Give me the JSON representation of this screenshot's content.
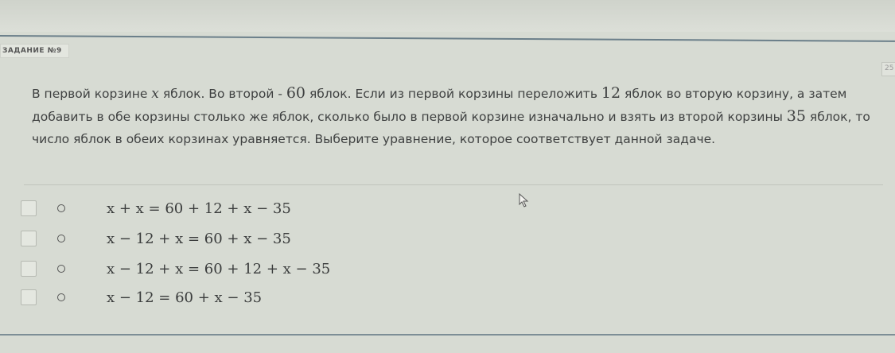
{
  "task": {
    "label": "ЗАДАНИЕ №9",
    "counter": "25",
    "question_parts": [
      "В первой корзине ",
      "x",
      " яблок. Во второй - ",
      "60",
      " яблок. Если из первой корзины переложить ",
      "12",
      " яблок во вторую корзину, а затем добавить в обе корзины столько же яблок, сколько было в первой корзине изначально и взять из второй корзины ",
      "35",
      " яблок, то число яблок в обеих корзинах уравняется. Выберите уравнение, которое соответствует данной задаче."
    ]
  },
  "options": [
    {
      "equation": "x + x = 60 + 12 + x − 35",
      "selected": false
    },
    {
      "equation": "x − 12 + x = 60 + x − 35",
      "selected": false
    },
    {
      "equation": "x − 12 + x = 60 + 12 + x − 35",
      "selected": false
    },
    {
      "equation": "x − 12 = 60 + x − 35",
      "selected": false
    }
  ]
}
